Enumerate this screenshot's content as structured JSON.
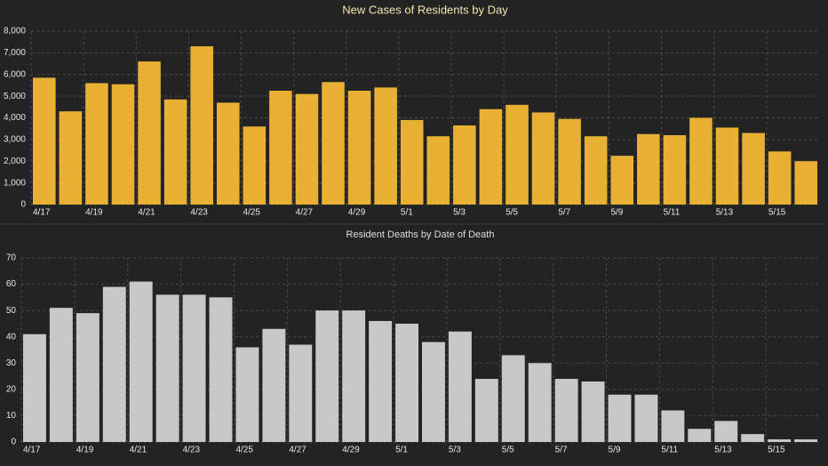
{
  "chart_data": [
    {
      "type": "bar",
      "title": "New Cases of Residents by Day",
      "color": "#e8b133",
      "grid": true,
      "categories": [
        "4/17",
        null,
        "4/19",
        null,
        "4/21",
        null,
        "4/23",
        null,
        "4/25",
        null,
        "4/27",
        null,
        "4/29",
        null,
        "5/1",
        null,
        "5/3",
        null,
        "5/5",
        null,
        "5/7",
        null,
        "5/9",
        null,
        "5/11",
        null,
        "5/13",
        null,
        "5/15",
        null
      ],
      "values": [
        5850,
        4300,
        5600,
        5550,
        6600,
        4850,
        7300,
        4700,
        3600,
        5250,
        5100,
        5650,
        5250,
        5400,
        3900,
        3150,
        3650,
        4400,
        4600,
        4250,
        3950,
        3150,
        2250,
        3250,
        3200,
        4000,
        3550,
        3300,
        2450,
        2000
      ],
      "ylim": [
        0,
        8000
      ],
      "yticks": [
        0,
        {
          "value": 1000,
          "label": "1,000"
        },
        {
          "value": 2000,
          "label": "2,000"
        },
        {
          "value": 3000,
          "label": "3,000"
        },
        {
          "value": 4000,
          "label": "4,000"
        },
        {
          "value": 5000,
          "label": "5,000"
        },
        {
          "value": 6000,
          "label": "6,000"
        },
        {
          "value": 7000,
          "label": "7,000"
        },
        {
          "value": 8000,
          "label": "8,000"
        }
      ]
    },
    {
      "type": "bar",
      "title": "Resident Deaths by Date of Death",
      "color": "#c8c8c8",
      "grid": true,
      "categories": [
        "4/17",
        null,
        "4/19",
        null,
        "4/21",
        null,
        "4/23",
        null,
        "4/25",
        null,
        "4/27",
        null,
        "4/29",
        null,
        "5/1",
        null,
        "5/3",
        null,
        "5/5",
        null,
        "5/7",
        null,
        "5/9",
        null,
        "5/11",
        null,
        "5/13",
        null,
        "5/15",
        null
      ],
      "values": [
        41,
        51,
        49,
        59,
        61,
        56,
        56,
        55,
        36,
        43,
        37,
        50,
        50,
        46,
        45,
        38,
        42,
        24,
        33,
        30,
        24,
        23,
        18,
        18,
        12,
        5,
        8,
        3,
        1,
        1
      ],
      "ylim": [
        0,
        70
      ],
      "yticks": [
        0,
        10,
        20,
        30,
        40,
        50,
        60,
        70
      ]
    }
  ]
}
